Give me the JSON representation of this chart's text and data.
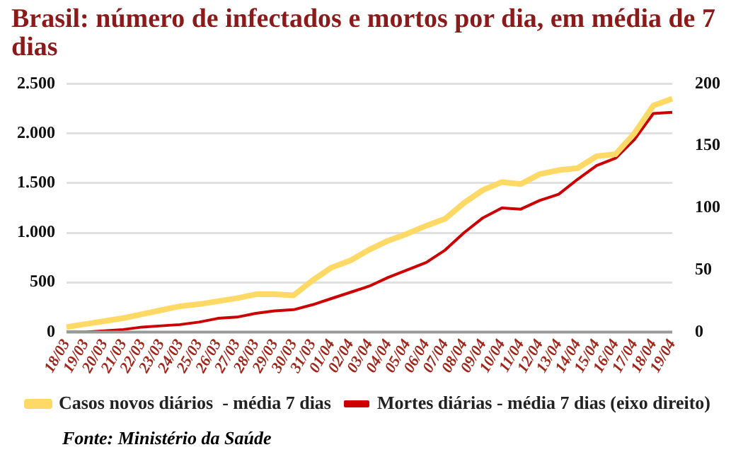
{
  "chart_data": {
    "type": "line",
    "title": "Brasil: número de infectados e mortos por dia, em média de 7 dias",
    "categories": [
      "18/03",
      "19/03",
      "20/03",
      "21/03",
      "22/03",
      "23/03",
      "24/03",
      "25/03",
      "26/03",
      "27/03",
      "28/03",
      "29/03",
      "30/03",
      "31/03",
      "01/04",
      "02/04",
      "03/04",
      "04/04",
      "05/04",
      "06/04",
      "07/04",
      "08/04",
      "09/04",
      "10/04",
      "11/04",
      "12/04",
      "13/04",
      "14/04",
      "15/04",
      "16/04",
      "17/04",
      "18/04",
      "19/04"
    ],
    "series": [
      {
        "name": "Casos novos diários  - média 7 dias",
        "color": "#ffd966",
        "values": [
          50,
          80,
          110,
          140,
          180,
          220,
          260,
          280,
          310,
          340,
          380,
          380,
          370,
          520,
          650,
          720,
          830,
          920,
          990,
          1070,
          1140,
          1300,
          1430,
          1510,
          1490,
          1590,
          1630,
          1650,
          1770,
          1790,
          2000,
          2280,
          2350
        ]
      },
      {
        "name": "Mortes diárias - média 7 dias (eixo direito)",
        "color": "#cc0000",
        "axis": "y2",
        "values": [
          0,
          0,
          1,
          2,
          4,
          5,
          6,
          8,
          11,
          12,
          15,
          17,
          18,
          22,
          27,
          32,
          37,
          44,
          50,
          56,
          66,
          80,
          92,
          100,
          99,
          106,
          111,
          123,
          134,
          140,
          155,
          176,
          177
        ]
      }
    ],
    "ylim": [
      0,
      2500
    ],
    "yticks": [
      {
        "value": 0,
        "label": "0"
      },
      {
        "value": 500,
        "label": "500"
      },
      {
        "value": 1000,
        "label": "1.000"
      },
      {
        "value": 1500,
        "label": "1.500"
      },
      {
        "value": 2000,
        "label": "2.000"
      },
      {
        "value": 2500,
        "label": "2.500"
      }
    ],
    "y2lim": [
      0,
      200
    ],
    "y2ticks": [
      0,
      50,
      100,
      150,
      200
    ],
    "grid": "y",
    "legend": "bottom",
    "marker": "none",
    "line_style": "solid",
    "annotations": [
      "Fonte: Ministério da Saúde"
    ]
  }
}
